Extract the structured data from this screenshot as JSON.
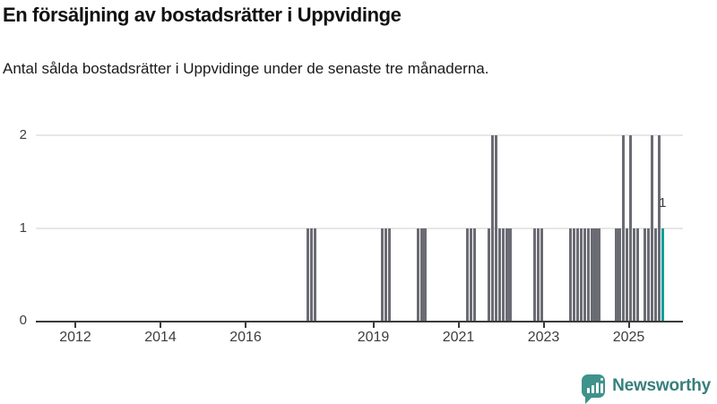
{
  "title": "En försäljning av bostadsrätter i Uppvidinge",
  "subtitle": "Antal sålda bostadsrätter i Uppvidinge under de senaste tre månaderna.",
  "logo": {
    "text": "Newsworthy"
  },
  "colors": {
    "bar": "#6b6b74",
    "highlight": "#0ca09d",
    "grid": "#e7e7e7",
    "axis": "#3a3a3a",
    "label": "#3d3d3d",
    "logo_icon": "#3e938c",
    "logo_text": "#377f7c"
  },
  "chart_data": {
    "type": "bar",
    "title": "En försäljning av bostadsrätter i Uppvidinge",
    "subtitle": "Antal sålda bostadsrätter i Uppvidinge under de senaste tre månaderna.",
    "xlabel": "",
    "ylabel": "",
    "x_ticks": [
      2012,
      2014,
      2016,
      2019,
      2021,
      2023,
      2025
    ],
    "x_range_years": [
      2011.1,
      2026.2
    ],
    "ylim": [
      0,
      2
    ],
    "y_ticks": [
      0,
      1,
      2
    ],
    "grid": "horizontal",
    "legend": "none",
    "bars": [
      {
        "month": "2017-05",
        "value": 1
      },
      {
        "month": "2017-06",
        "value": 1
      },
      {
        "month": "2017-07",
        "value": 1
      },
      {
        "month": "2019-02",
        "value": 1
      },
      {
        "month": "2019-03",
        "value": 1
      },
      {
        "month": "2019-04",
        "value": 1
      },
      {
        "month": "2019-12",
        "value": 1
      },
      {
        "month": "2020-01",
        "value": 1
      },
      {
        "month": "2020-02",
        "value": 1
      },
      {
        "month": "2021-02",
        "value": 1
      },
      {
        "month": "2021-03",
        "value": 1
      },
      {
        "month": "2021-04",
        "value": 1
      },
      {
        "month": "2021-08",
        "value": 1
      },
      {
        "month": "2021-09",
        "value": 2
      },
      {
        "month": "2021-10",
        "value": 2
      },
      {
        "month": "2021-11",
        "value": 1
      },
      {
        "month": "2021-12",
        "value": 1
      },
      {
        "month": "2022-01",
        "value": 1
      },
      {
        "month": "2022-02",
        "value": 1
      },
      {
        "month": "2022-09",
        "value": 1
      },
      {
        "month": "2022-10",
        "value": 1
      },
      {
        "month": "2022-11",
        "value": 1
      },
      {
        "month": "2023-07",
        "value": 1
      },
      {
        "month": "2023-08",
        "value": 1
      },
      {
        "month": "2023-09",
        "value": 1
      },
      {
        "month": "2023-10",
        "value": 1
      },
      {
        "month": "2023-11",
        "value": 1
      },
      {
        "month": "2023-12",
        "value": 1
      },
      {
        "month": "2024-01",
        "value": 1
      },
      {
        "month": "2024-02",
        "value": 1
      },
      {
        "month": "2024-03",
        "value": 1
      },
      {
        "month": "2024-08",
        "value": 1
      },
      {
        "month": "2024-09",
        "value": 1
      },
      {
        "month": "2024-10",
        "value": 2
      },
      {
        "month": "2024-11",
        "value": 1
      },
      {
        "month": "2024-12",
        "value": 2
      },
      {
        "month": "2025-01",
        "value": 1
      },
      {
        "month": "2025-02",
        "value": 1
      },
      {
        "month": "2025-04",
        "value": 1
      },
      {
        "month": "2025-05",
        "value": 1
      },
      {
        "month": "2025-06",
        "value": 2
      },
      {
        "month": "2025-07",
        "value": 1
      },
      {
        "month": "2025-08",
        "value": 2
      }
    ],
    "highlight_bar": {
      "month": "2025-09",
      "value": 1,
      "label": "1"
    }
  }
}
